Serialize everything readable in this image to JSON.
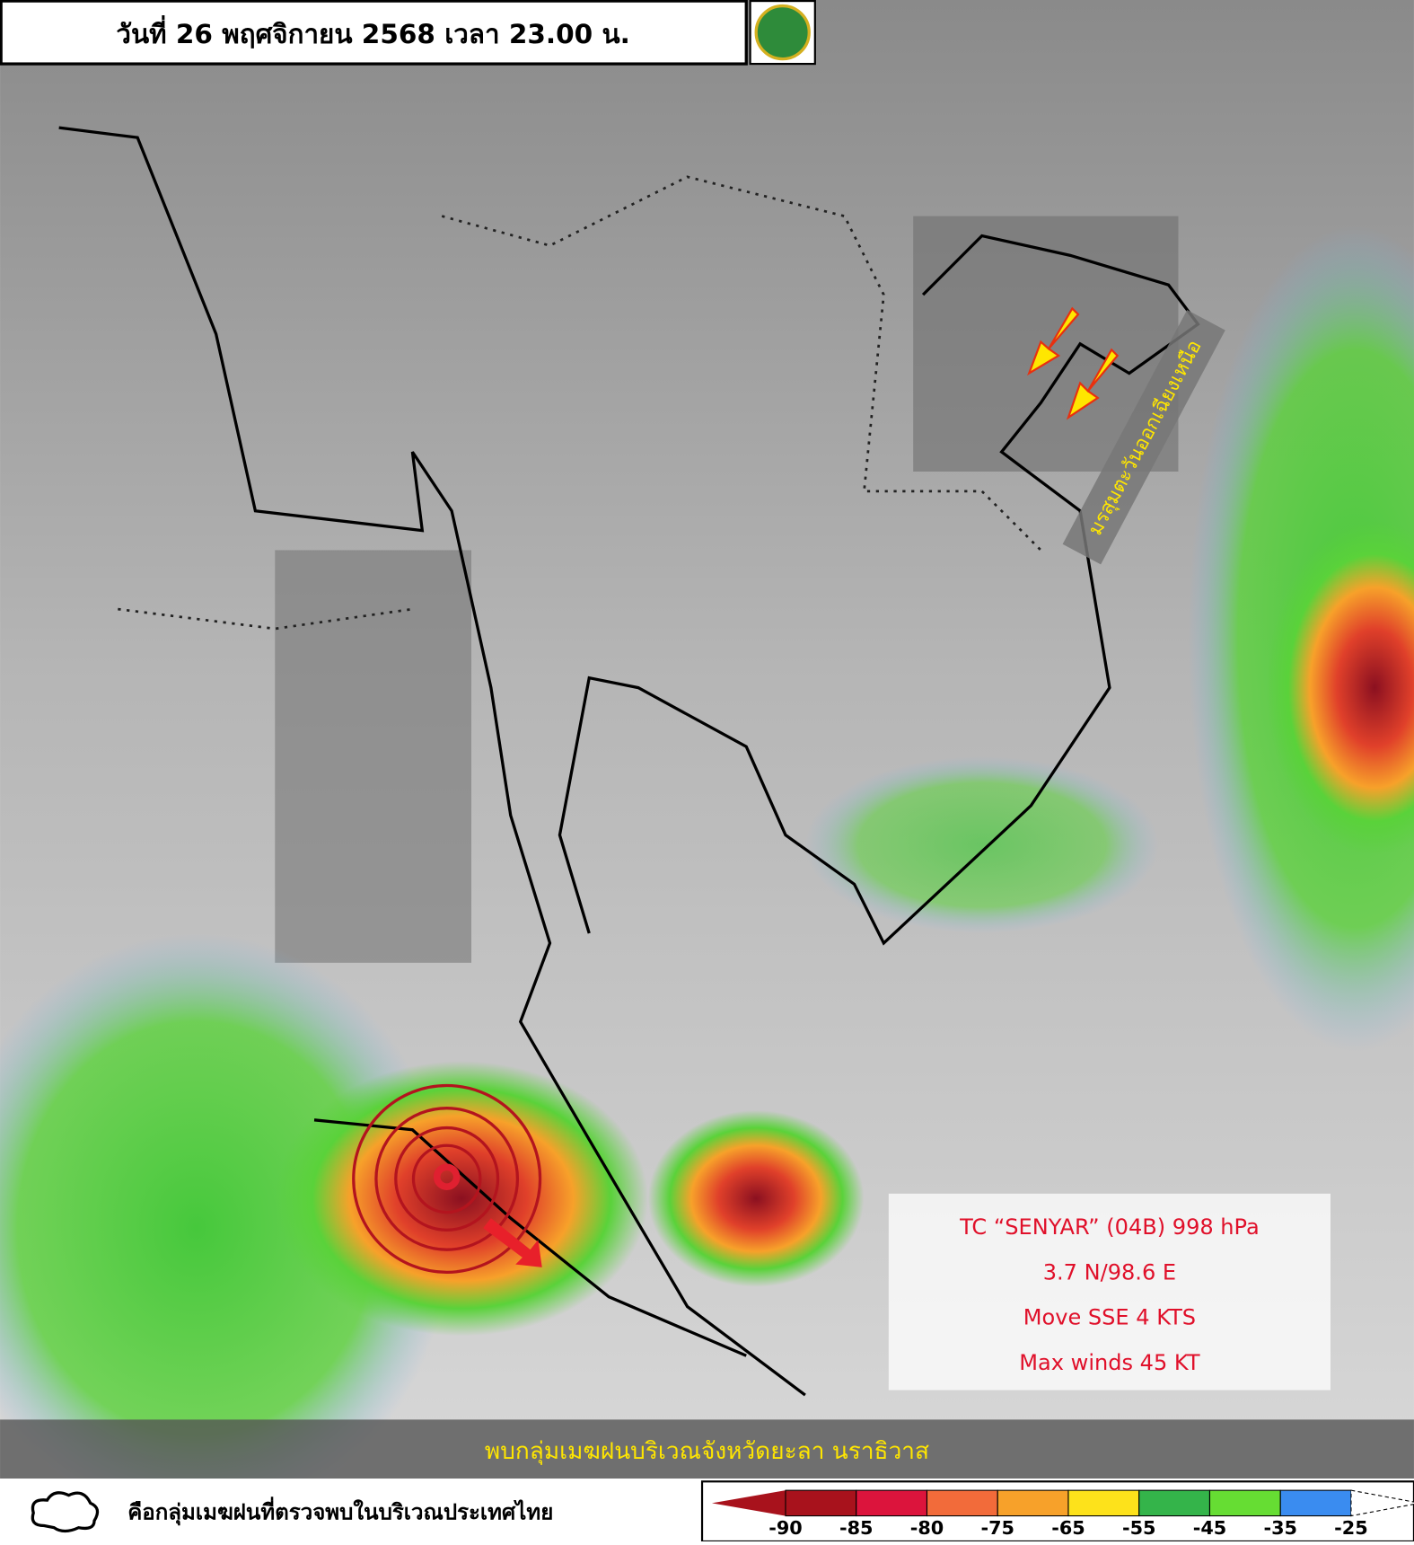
{
  "header": {
    "title": "วันที่ 26 พฤศจิกายน 2568 เวลา 23.00 น."
  },
  "monsoon_label": "มรสุมตะวันออกเฉียงเหนือ",
  "storm_info": {
    "lines": [
      "TC “SENYAR” (04B) 998 hPa",
      "3.7 N/98.6 E",
      "Move SSE 4 KTS",
      "Max winds 45 KT"
    ]
  },
  "banner": "พบกลุ่มเมฆฝนบริเวณจังหวัดยะลา นราธิวาส",
  "legend": {
    "text": "คือกลุ่มเมฆฝนที่ตรวจพบในบริเวณประเทศไทย"
  },
  "colorbar": {
    "ticks": [
      -90,
      -85,
      -80,
      -75,
      -65,
      -55,
      -45,
      -35,
      -25
    ],
    "colors": [
      "#a8121c",
      "#dc143c",
      "#f26b3a",
      "#f7a12a",
      "#fde21b",
      "#34b44a",
      "#66dd33",
      "#3a8cf0"
    ]
  }
}
